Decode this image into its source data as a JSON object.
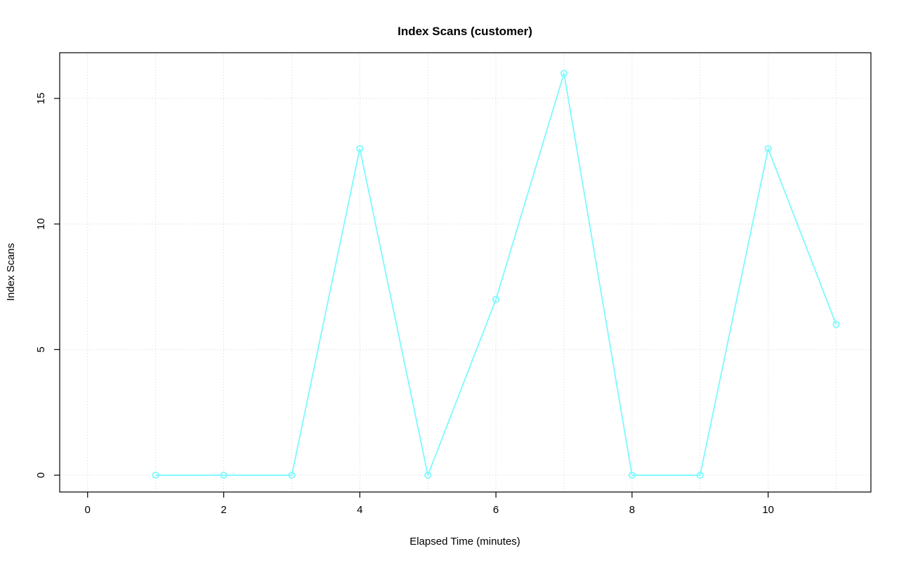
{
  "chart_data": {
    "type": "line",
    "title": "Index Scans (customer)",
    "xlabel": "Elapsed Time (minutes)",
    "ylabel": "Index Scans",
    "x": [
      1,
      2,
      3,
      4,
      5,
      6,
      7,
      8,
      9,
      10,
      11
    ],
    "values": [
      0,
      0,
      0,
      13,
      0,
      7,
      16,
      0,
      0,
      13,
      6
    ],
    "series_name": "index_scans",
    "xlim": [
      -0.41,
      11.51
    ],
    "ylim": [
      -0.67,
      16.82
    ],
    "xticks": [
      0,
      2,
      4,
      6,
      8,
      10
    ],
    "yticks": [
      0,
      5,
      10,
      15
    ],
    "xtick_labels": [
      "0",
      "2",
      "4",
      "6",
      "8",
      "10"
    ],
    "ytick_labels": [
      "0",
      "5",
      "10",
      "15"
    ],
    "grid": {
      "visible": true,
      "x_lines": [
        0,
        1,
        2,
        3,
        4,
        5,
        6,
        7,
        8,
        9,
        10,
        11
      ],
      "y_lines": [
        0,
        5,
        10,
        15
      ],
      "style": "dotted"
    },
    "legend": "none",
    "marker": "open-circle",
    "colors": {
      "line": "#7df9ff",
      "marker": "#7df9ff",
      "grid": "#d3d3d3",
      "box": "#000000",
      "background": "#ffffff"
    }
  }
}
